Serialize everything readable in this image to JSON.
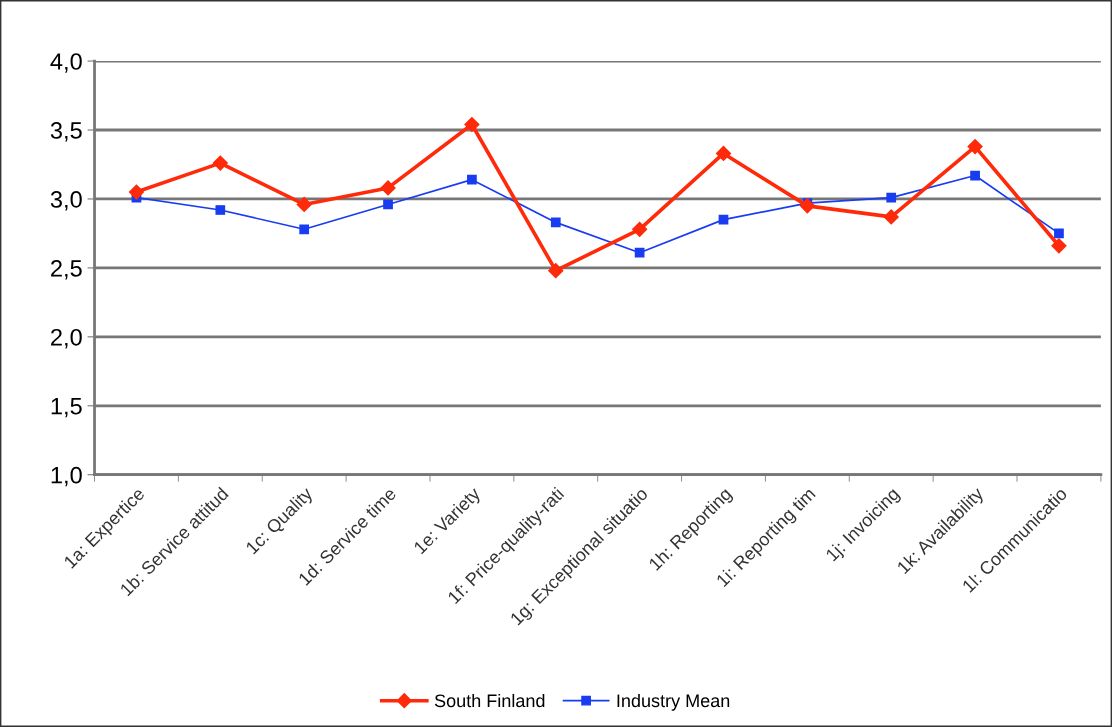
{
  "chart_data": {
    "type": "line",
    "categories": [
      "1a: Expertice",
      "1b: Service attitud",
      "1c: Quality",
      "1d: Service time",
      "1e: Variety",
      "1f: Price-quality-rati",
      "1g: Exceptional situatio",
      "1h: Reporting",
      "1i: Reporting tim",
      "1j: Invoicing",
      "1k: Availability",
      "1l: Communicatio"
    ],
    "series": [
      {
        "name": "South Finland",
        "color": "#ff2a0a",
        "marker": "diamond",
        "values": [
          3.05,
          3.26,
          2.96,
          3.08,
          3.54,
          2.48,
          2.78,
          3.33,
          2.95,
          2.87,
          3.38,
          2.66
        ]
      },
      {
        "name": "Industry Mean",
        "color": "#1a3cf0",
        "marker": "square",
        "values": [
          3.01,
          2.92,
          2.78,
          2.96,
          3.14,
          2.83,
          2.61,
          2.85,
          2.97,
          3.01,
          3.17,
          2.75
        ]
      }
    ],
    "ylim": [
      1.0,
      4.0
    ],
    "yticks": [
      {
        "value": 1.0,
        "label": "1,0"
      },
      {
        "value": 1.5,
        "label": "1,5"
      },
      {
        "value": 2.0,
        "label": "2,0"
      },
      {
        "value": 2.5,
        "label": "2,5"
      },
      {
        "value": 3.0,
        "label": "3,0"
      },
      {
        "value": 3.5,
        "label": "3,5"
      },
      {
        "value": 4.0,
        "label": "4,0"
      }
    ],
    "grid": "y",
    "legend": "bottom"
  }
}
